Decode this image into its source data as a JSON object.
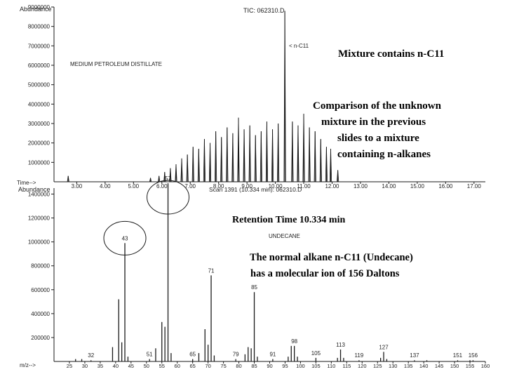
{
  "tic_panel": {
    "abundance_label": "Abundance",
    "header": "TIC: 062310.D",
    "time_label": "Time-->",
    "sample_label": "MEDIUM PETROLEUM DISTILLATE",
    "peak_tag": "< n-C11"
  },
  "ms_panel": {
    "abundance_label": "Abundance",
    "header": "Scan 1391 (10.334 min): 062310.D",
    "mz_label": "m/z-->",
    "compound_label": "UNDECANE"
  },
  "annotations": {
    "mixture": "Mixture contains n-C11",
    "comparison": [
      "Comparison of the unknown",
      "mixture in the previous",
      "slides to a mixture",
      "containing n-alkanes"
    ],
    "retention": "Retention Time 10.334 min",
    "molecular": [
      "The normal alkane n-C11 (Undecane)",
      "has a molecular ion of 156 Daltons"
    ]
  },
  "colors": {
    "ink": "#1a1a1a",
    "background": "#ffffff"
  },
  "chart_data": [
    {
      "type": "line",
      "title": "TIC: 062310.D",
      "xlabel": "Time-->",
      "ylabel": "Abundance",
      "xlim": [
        2.2,
        17.4
      ],
      "ylim": [
        0,
        9000000
      ],
      "x_ticks": [
        "3.00",
        "4.00",
        "5.00",
        "6.00",
        "7.00",
        "8.00",
        "9.00",
        "10.00",
        "11.00",
        "12.00",
        "13.00",
        "14.00",
        "15.00",
        "16.00",
        "17.00"
      ],
      "y_ticks": [
        "1000000",
        "2000000",
        "3000000",
        "4000000",
        "5000000",
        "6000000",
        "7000000",
        "8000000",
        "9000000"
      ],
      "series": [
        {
          "name": "MEDIUM PETROLEUM DISTILLATE",
          "x": [
            2.7,
            5.6,
            5.9,
            6.1,
            6.3,
            6.5,
            6.7,
            6.9,
            7.1,
            7.3,
            7.5,
            7.7,
            7.9,
            8.1,
            8.3,
            8.5,
            8.7,
            8.9,
            9.1,
            9.3,
            9.5,
            9.7,
            9.9,
            10.1,
            10.334,
            10.6,
            10.8,
            11.0,
            11.2,
            11.4,
            11.6,
            11.8,
            11.95,
            12.2
          ],
          "y": [
            300000,
            200000,
            300000,
            500000,
            700000,
            900000,
            1200000,
            1400000,
            1800000,
            1700000,
            2200000,
            2000000,
            2600000,
            2300000,
            2800000,
            2500000,
            3300000,
            2700000,
            2900000,
            2400000,
            2600000,
            3100000,
            2700000,
            3000000,
            8800000,
            3100000,
            2900000,
            3500000,
            2800000,
            2600000,
            2200000,
            1800000,
            1700000,
            600000
          ]
        }
      ]
    },
    {
      "type": "bar",
      "title": "Scan 1391 (10.334 min): 062310.D",
      "xlabel": "m/z-->",
      "ylabel": "Abundance",
      "xlim": [
        20,
        160
      ],
      "ylim": [
        0,
        1450000
      ],
      "x_ticks": [
        25,
        30,
        35,
        40,
        45,
        50,
        55,
        60,
        65,
        70,
        75,
        80,
        85,
        90,
        95,
        100,
        105,
        110,
        115,
        120,
        125,
        130,
        135,
        140,
        145,
        150,
        155,
        160
      ],
      "y_ticks": [
        200000,
        400000,
        600000,
        800000,
        1000000,
        1200000,
        1400000
      ],
      "mz": [
        27,
        29,
        32,
        39,
        41,
        42,
        43,
        44,
        51,
        53,
        55,
        56,
        57,
        58,
        65,
        67,
        69,
        70,
        71,
        72,
        79,
        82,
        83,
        84,
        85,
        86,
        91,
        96,
        97,
        98,
        99,
        105,
        112,
        113,
        114,
        119,
        126,
        127,
        128,
        137,
        141,
        151,
        155,
        156
      ],
      "abundance": [
        20000,
        20000,
        10000,
        120000,
        520000,
        160000,
        990000,
        40000,
        20000,
        110000,
        330000,
        290000,
        1490000,
        70000,
        20000,
        70000,
        270000,
        140000,
        720000,
        50000,
        20000,
        60000,
        120000,
        110000,
        580000,
        40000,
        20000,
        40000,
        130000,
        130000,
        40000,
        30000,
        30000,
        100000,
        30000,
        10000,
        30000,
        80000,
        20000,
        10000,
        10000,
        10000,
        10000,
        10000
      ],
      "peak_labels": [
        {
          "mz": 32,
          "text": "32"
        },
        {
          "mz": 43,
          "text": "43"
        },
        {
          "mz": 51,
          "text": "51"
        },
        {
          "mz": 57,
          "text": "57"
        },
        {
          "mz": 65,
          "text": "65"
        },
        {
          "mz": 71,
          "text": "71"
        },
        {
          "mz": 79,
          "text": "79"
        },
        {
          "mz": 85,
          "text": "85"
        },
        {
          "mz": 91,
          "text": "91"
        },
        {
          "mz": 98,
          "text": "98"
        },
        {
          "mz": 105,
          "text": "105"
        },
        {
          "mz": 113,
          "text": "113"
        },
        {
          "mz": 119,
          "text": "119"
        },
        {
          "mz": 127,
          "text": "127"
        },
        {
          "mz": 137,
          "text": "137"
        },
        {
          "mz": 151,
          "text": "151"
        },
        {
          "mz": 156,
          "text": "156"
        }
      ],
      "circled_peaks": [
        43,
        57
      ]
    }
  ]
}
